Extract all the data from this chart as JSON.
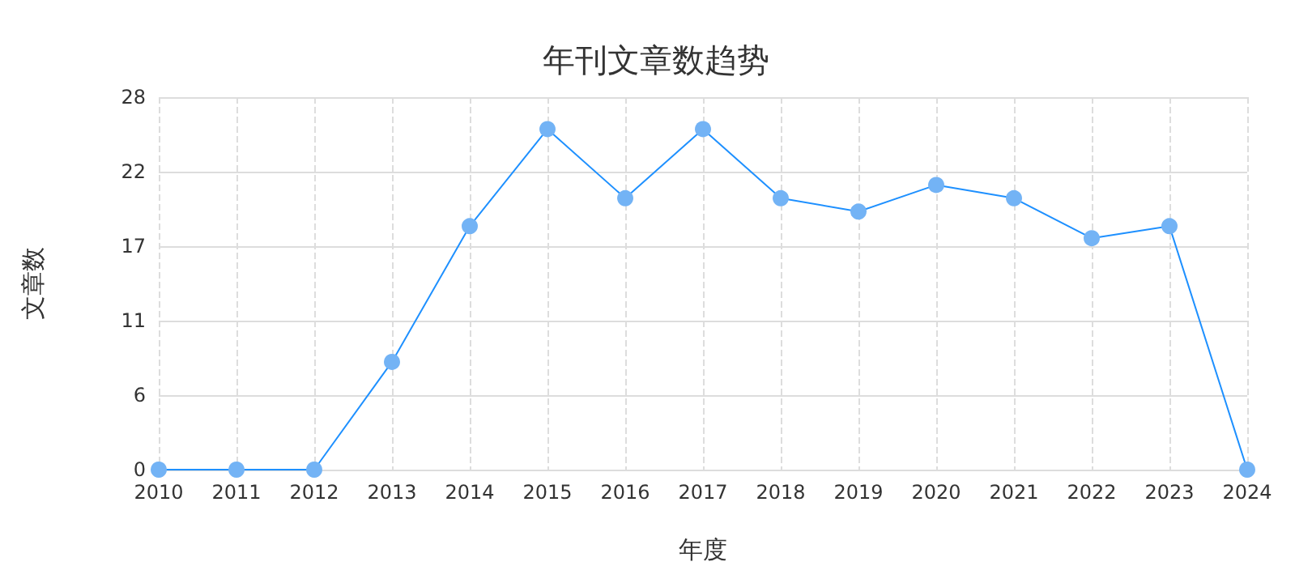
{
  "chart_data": {
    "type": "line",
    "title": "年刊文章数趋势",
    "xlabel": "年度",
    "ylabel": "文章数",
    "categories": [
      "2010",
      "2011",
      "2012",
      "2013",
      "2014",
      "2015",
      "2016",
      "2017",
      "2018",
      "2019",
      "2020",
      "2021",
      "2022",
      "2023",
      "2024"
    ],
    "series": [
      {
        "color": "#1e90ff",
        "values": [
          0,
          0,
          0,
          8.1,
          18.3,
          25.6,
          20.4,
          25.6,
          20.4,
          19.4,
          21.4,
          20.4,
          17.4,
          18.3,
          0
        ]
      }
    ],
    "ylim": [
      0,
      28
    ],
    "yticks": [
      0,
      {
        "value": 5.6,
        "label": "6"
      },
      {
        "value": 11.2,
        "label": "11"
      },
      {
        "value": 16.8,
        "label": "17"
      },
      {
        "value": 22.4,
        "label": "22"
      },
      28
    ],
    "grid": true,
    "marker": "circle",
    "line_style": "solid"
  }
}
